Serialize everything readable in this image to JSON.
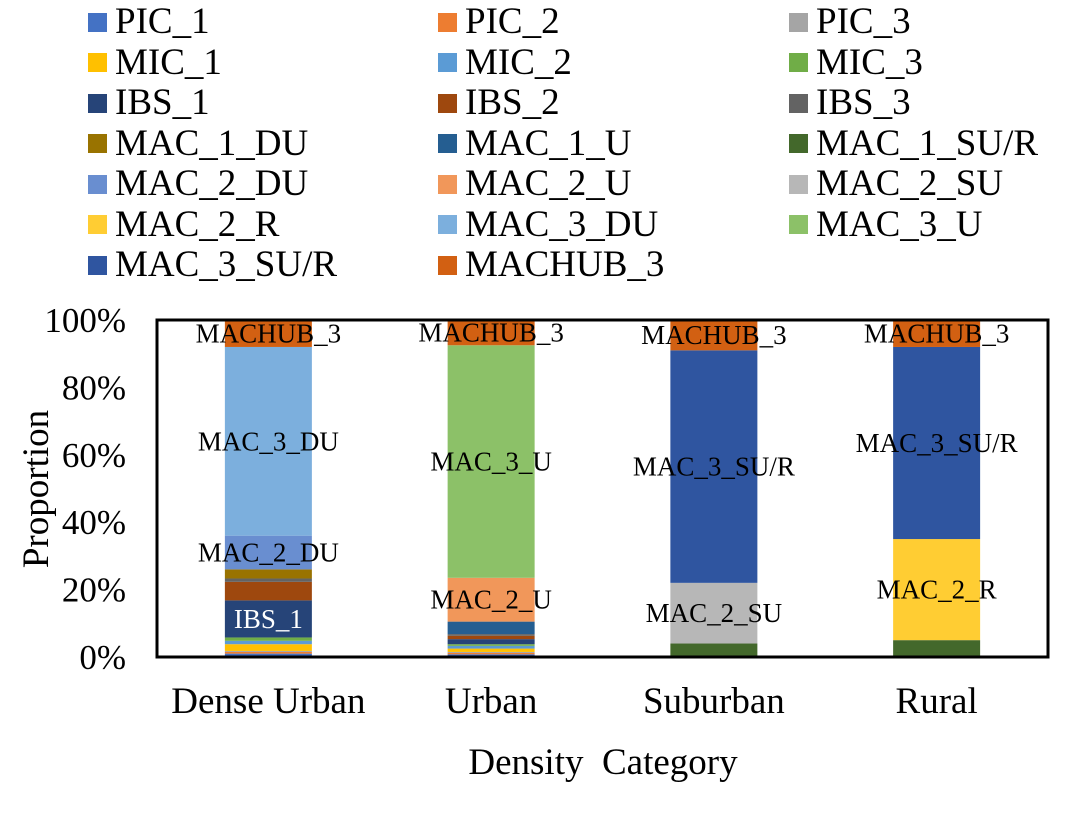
{
  "chart_data": {
    "type": "bar",
    "stacked": true,
    "normalized": true,
    "categories": [
      "Dense Urban",
      "Urban",
      "Suburban",
      "Rural"
    ],
    "xlabel": "Density  Category",
    "ylabel": "Proportion",
    "ylim": [
      0,
      100
    ],
    "yticks": [
      "0%",
      "20%",
      "40%",
      "60%",
      "80%",
      "100%"
    ],
    "grid": false,
    "legend_position": "top",
    "series": [
      {
        "name": "PIC_1",
        "color": "#4472C4",
        "values": [
          1.0,
          0.8,
          0,
          0
        ]
      },
      {
        "name": "PIC_2",
        "color": "#ED7D31",
        "values": [
          0.5,
          0.4,
          0,
          0
        ]
      },
      {
        "name": "PIC_3",
        "color": "#A5A5A5",
        "values": [
          0.3,
          0.3,
          0,
          0
        ]
      },
      {
        "name": "MIC_1",
        "color": "#FFC000",
        "values": [
          2.0,
          1.0,
          0,
          0
        ]
      },
      {
        "name": "MIC_2",
        "color": "#5B9BD5",
        "values": [
          1.0,
          0.8,
          0,
          0
        ]
      },
      {
        "name": "MIC_3",
        "color": "#70AD47",
        "values": [
          1.0,
          0.5,
          0,
          0
        ]
      },
      {
        "name": "IBS_1",
        "color": "#264478",
        "values": [
          11.0,
          1.5,
          0,
          0
        ]
      },
      {
        "name": "IBS_2",
        "color": "#9E480E",
        "values": [
          5.5,
          1.0,
          0,
          0
        ]
      },
      {
        "name": "IBS_3",
        "color": "#636363",
        "values": [
          1.0,
          0.5,
          0,
          0
        ]
      },
      {
        "name": "MAC_1_DU",
        "color": "#997300",
        "values": [
          2.7,
          0,
          0,
          0
        ]
      },
      {
        "name": "MAC_1_U",
        "color": "#255E91",
        "values": [
          0,
          3.7,
          0,
          0
        ]
      },
      {
        "name": "MAC_1_SU/R",
        "color": "#43682B",
        "values": [
          0,
          0,
          4.0,
          5.0
        ]
      },
      {
        "name": "MAC_2_DU",
        "color": "#698ED0",
        "values": [
          10.0,
          0,
          0,
          0
        ]
      },
      {
        "name": "MAC_2_U",
        "color": "#F1975A",
        "values": [
          0,
          13.0,
          0,
          0
        ]
      },
      {
        "name": "MAC_2_SU",
        "color": "#B7B7B7",
        "values": [
          0,
          0,
          18.0,
          0
        ]
      },
      {
        "name": "MAC_2_R",
        "color": "#FFCD33",
        "values": [
          0,
          0,
          0,
          30.0
        ]
      },
      {
        "name": "MAC_3_DU",
        "color": "#7CAFDD",
        "values": [
          56.0,
          0,
          0,
          0
        ]
      },
      {
        "name": "MAC_3_U",
        "color": "#8CC168",
        "values": [
          0,
          69.0,
          0,
          0
        ]
      },
      {
        "name": "MAC_3_SU/R",
        "color": "#2F55A0",
        "values": [
          0,
          0,
          69.0,
          57.0
        ]
      },
      {
        "name": "MACHUB_3",
        "color": "#D26012",
        "values": [
          8.0,
          7.5,
          9.0,
          8.0
        ]
      }
    ],
    "data_labels": [
      {
        "category": "Dense Urban",
        "series": "MACHUB_3",
        "text": "MACHUB_3",
        "color": "#000000"
      },
      {
        "category": "Dense Urban",
        "series": "MAC_3_DU",
        "text": "MAC_3_DU",
        "color": "#000000"
      },
      {
        "category": "Dense Urban",
        "series": "MAC_2_DU",
        "text": "MAC_2_DU",
        "color": "#000000"
      },
      {
        "category": "Dense Urban",
        "series": "IBS_1",
        "text": "IBS_1",
        "color": "#FFFFFF"
      },
      {
        "category": "Urban",
        "series": "MACHUB_3",
        "text": "MACHUB_3",
        "color": "#000000"
      },
      {
        "category": "Urban",
        "series": "MAC_3_U",
        "text": "MAC_3_U",
        "color": "#000000"
      },
      {
        "category": "Urban",
        "series": "MAC_2_U",
        "text": "MAC_2_U",
        "color": "#000000"
      },
      {
        "category": "Suburban",
        "series": "MACHUB_3",
        "text": "MACHUB_3",
        "color": "#000000"
      },
      {
        "category": "Suburban",
        "series": "MAC_3_SU/R",
        "text": "MAC_3_SU/R",
        "color": "#000000"
      },
      {
        "category": "Suburban",
        "series": "MAC_2_SU",
        "text": "MAC_2_SU",
        "color": "#000000"
      },
      {
        "category": "Rural",
        "series": "MACHUB_3",
        "text": "MACHUB_3",
        "color": "#000000"
      },
      {
        "category": "Rural",
        "series": "MAC_3_SU/R",
        "text": "MAC_3_SU/R",
        "color": "#000000"
      },
      {
        "category": "Rural",
        "series": "MAC_2_R",
        "text": "MAC_2_R",
        "color": "#000000"
      }
    ]
  }
}
